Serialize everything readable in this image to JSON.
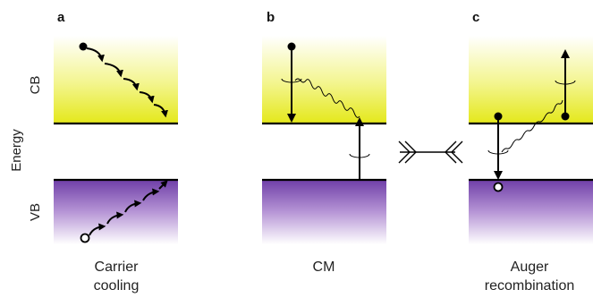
{
  "axis": {
    "energy": "Energy",
    "cb": "CB",
    "vb": "VB"
  },
  "panels": [
    {
      "letter": "a",
      "caption_lines": [
        "Carrier",
        "cooling"
      ]
    },
    {
      "letter": "b",
      "caption_lines": [
        "CM"
      ]
    },
    {
      "letter": "c",
      "caption_lines": [
        "Auger",
        "recombination"
      ]
    }
  ],
  "colors": {
    "conduction_band": "#e8ec1e",
    "valence_band": "#7d4bb0",
    "lines": "#000000"
  }
}
